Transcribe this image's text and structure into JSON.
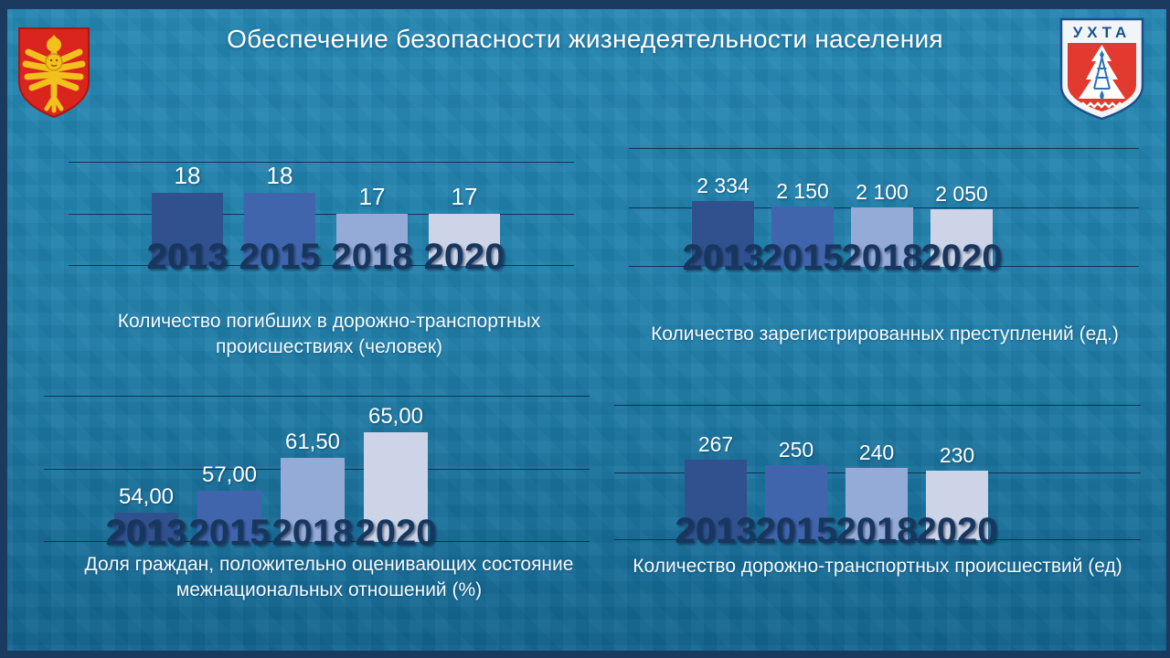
{
  "title": "Обеспечение безопасности жизнедеятельности населения",
  "logos": {
    "komi_alt": "coat-of-arms-komi-republic",
    "ukhta_text": "УХТА"
  },
  "colors": {
    "background_top": "#2488b4",
    "background_bottom": "#11648e",
    "frame": "#1b3a60",
    "gridline": "#122d4e",
    "year_label": "#17375e",
    "value_label": "#ffffff",
    "bar_colors": [
      "#31518e",
      "#4065ad",
      "#94aad7",
      "#cdd4e8"
    ]
  },
  "chart_data": [
    {
      "type": "bar",
      "title": "Количество погибших в дорожно-транспортных происшествиях (человек)",
      "categories": [
        "2013",
        "2015",
        "2018",
        "2020"
      ],
      "values": [
        18,
        18,
        17,
        17
      ],
      "value_labels": [
        "18",
        "18",
        "17",
        "17"
      ],
      "ylim": [
        15,
        19
      ],
      "grid": true,
      "legend": "none"
    },
    {
      "type": "bar",
      "title": "Количество зарегистрированных преступлений (ед.)",
      "categories": [
        "2013",
        "2015",
        "2018",
        "2020"
      ],
      "values": [
        2334,
        2150,
        2100,
        2050
      ],
      "value_labels": [
        "2 334",
        "2 150",
        "2 100",
        "2 050"
      ],
      "ylim": [
        0,
        4200
      ],
      "grid": true,
      "legend": "none"
    },
    {
      "type": "bar",
      "title": "Доля граждан, положительно оценивающих состояние межнациональных отношений (%)",
      "categories": [
        "2013",
        "2015",
        "2018",
        "2020"
      ],
      "values": [
        54,
        57,
        61.5,
        65
      ],
      "value_labels": [
        "54,00",
        "57,00",
        "61,50",
        "65,00"
      ],
      "ylim": [
        50,
        70
      ],
      "grid": true,
      "legend": "none"
    },
    {
      "type": "bar",
      "title": "Количество дорожно-транспортных происшествий (ед)",
      "categories": [
        "2013",
        "2015",
        "2018",
        "2020"
      ],
      "values": [
        267,
        250,
        240,
        230
      ],
      "value_labels": [
        "267",
        "250",
        "240",
        "230"
      ],
      "ylim": [
        0,
        450
      ],
      "grid": true,
      "legend": "none"
    }
  ]
}
